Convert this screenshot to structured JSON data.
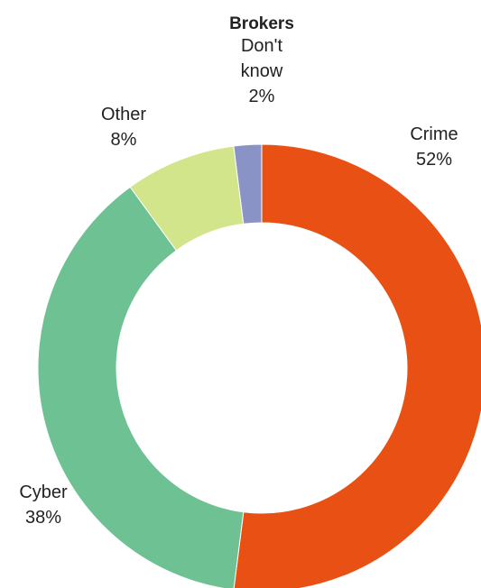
{
  "chart_data": {
    "type": "pie",
    "variant": "donut",
    "title": "Brokers",
    "slices": [
      {
        "label": "Crime",
        "value": 52,
        "display": "52%",
        "color": "#E95114"
      },
      {
        "label": "Cyber",
        "value": 38,
        "display": "38%",
        "color": "#6DC192"
      },
      {
        "label": "Other",
        "value": 8,
        "display": "8%",
        "color": "#D3E58A"
      },
      {
        "label": "Don't know",
        "value": 2,
        "display": "2%",
        "color": "#8A93C6"
      }
    ],
    "legend": "none",
    "data_labels": "outside"
  }
}
